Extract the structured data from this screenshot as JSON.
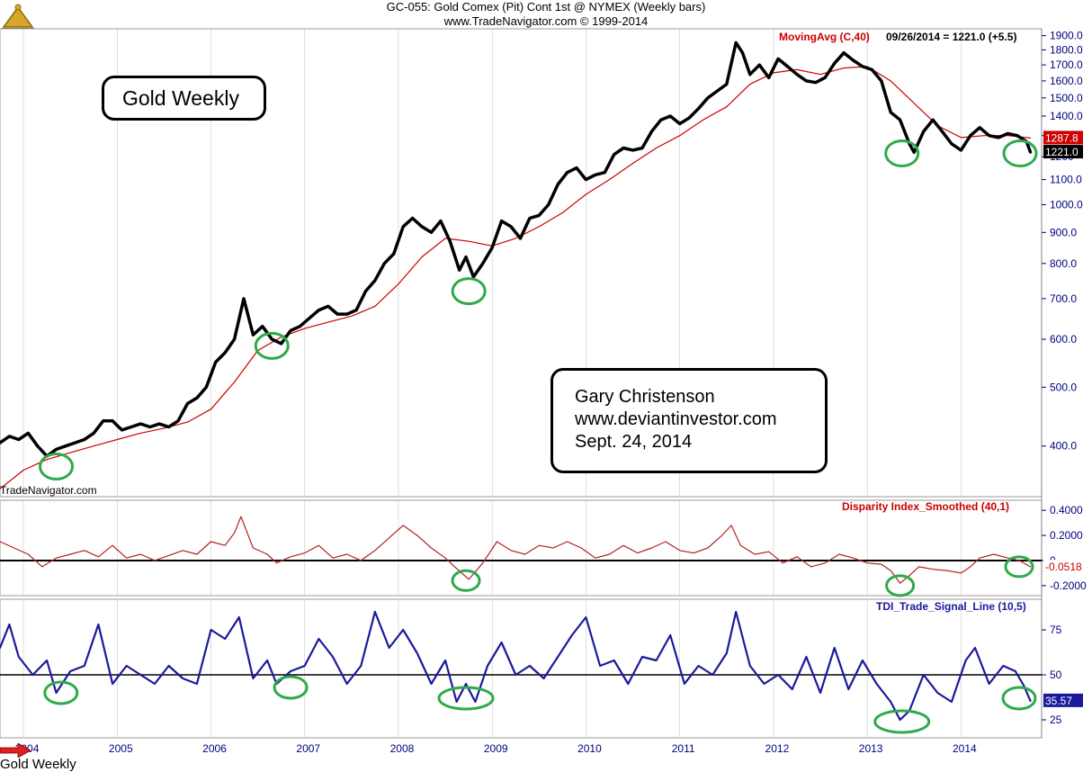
{
  "header": {
    "line1": "GC-055:  Gold Comex (Pit) Cont 1st @ NYMEX  (Weekly bars)",
    "line2": "www.TradeNavigator.com © 1999-2014"
  },
  "notes": {
    "gold_weekly": "Gold Weekly",
    "author": "Gary Christenson",
    "website": "www.deviantinvestor.com",
    "date": "Sept. 24, 2014"
  },
  "credit": "TradeNavigator.com",
  "footer": "Gold Weekly",
  "colors": {
    "price": "#000000",
    "ma": "#cc0000",
    "disparity": "#b22222",
    "tdi": "#1a1a9c",
    "circle": "#2eaa4a",
    "axis_text": "#000080",
    "grid": "#c8c8c8"
  },
  "chart_data": [
    {
      "id": "price",
      "type": "line",
      "title": "MovingAvg (C,40)",
      "info": "09/26/2014 = 1221.0 (+5.5)",
      "scale": "log",
      "ylim": [
        330,
        1950
      ],
      "yticks": [
        400,
        500,
        600,
        700,
        800,
        900,
        1000,
        1100,
        1200,
        1300,
        1400,
        1500,
        1600,
        1700,
        1800,
        1900
      ],
      "ytick_labels": [
        "400.0",
        "500.0",
        "600.0",
        "700.0",
        "800.0",
        "900.0",
        "1000.0",
        "1100.0",
        "1200",
        "1300",
        "1400.0",
        "1500.0",
        "1600.0",
        "1700.0",
        "1800.0",
        "1900.0"
      ],
      "last_labels": [
        "1287.8",
        "1221.0"
      ],
      "series": [
        {
          "name": "Gold Close",
          "x": [
            2003.75,
            2003.85,
            2003.95,
            2004.05,
            2004.15,
            2004.25,
            2004.35,
            2004.45,
            2004.55,
            2004.65,
            2004.75,
            2004.85,
            2004.95,
            2005.05,
            2005.15,
            2005.25,
            2005.35,
            2005.45,
            2005.55,
            2005.65,
            2005.75,
            2005.85,
            2005.95,
            2006.05,
            2006.15,
            2006.25,
            2006.35,
            2006.45,
            2006.55,
            2006.65,
            2006.75,
            2006.85,
            2006.95,
            2007.05,
            2007.15,
            2007.25,
            2007.35,
            2007.45,
            2007.55,
            2007.65,
            2007.75,
            2007.85,
            2007.95,
            2008.05,
            2008.15,
            2008.25,
            2008.35,
            2008.45,
            2008.55,
            2008.65,
            2008.72,
            2008.8,
            2008.9,
            2009.0,
            2009.1,
            2009.2,
            2009.3,
            2009.4,
            2009.5,
            2009.6,
            2009.7,
            2009.8,
            2009.9,
            2010.0,
            2010.1,
            2010.2,
            2010.3,
            2010.4,
            2010.5,
            2010.6,
            2010.7,
            2010.8,
            2010.9,
            2011.0,
            2011.1,
            2011.2,
            2011.3,
            2011.4,
            2011.5,
            2011.6,
            2011.67,
            2011.75,
            2011.85,
            2011.95,
            2012.05,
            2012.15,
            2012.25,
            2012.35,
            2012.45,
            2012.55,
            2012.65,
            2012.75,
            2012.85,
            2012.95,
            2013.05,
            2013.15,
            2013.25,
            2013.35,
            2013.45,
            2013.5,
            2013.6,
            2013.7,
            2013.8,
            2013.9,
            2014.0,
            2014.1,
            2014.2,
            2014.3,
            2014.4,
            2014.5,
            2014.6,
            2014.7,
            2014.74
          ],
          "y": [
            405,
            415,
            410,
            420,
            400,
            385,
            395,
            400,
            405,
            410,
            420,
            440,
            440,
            425,
            430,
            435,
            430,
            435,
            430,
            440,
            470,
            480,
            500,
            550,
            570,
            600,
            700,
            610,
            630,
            600,
            590,
            620,
            630,
            650,
            670,
            680,
            660,
            660,
            670,
            720,
            750,
            800,
            830,
            920,
            950,
            920,
            900,
            940,
            870,
            780,
            820,
            760,
            800,
            850,
            940,
            920,
            880,
            950,
            960,
            1000,
            1080,
            1130,
            1150,
            1100,
            1120,
            1130,
            1210,
            1240,
            1230,
            1240,
            1320,
            1380,
            1400,
            1360,
            1390,
            1440,
            1500,
            1540,
            1580,
            1850,
            1780,
            1640,
            1700,
            1620,
            1740,
            1690,
            1640,
            1600,
            1590,
            1620,
            1710,
            1780,
            1730,
            1690,
            1670,
            1600,
            1420,
            1380,
            1260,
            1220,
            1320,
            1380,
            1320,
            1260,
            1230,
            1300,
            1340,
            1300,
            1290,
            1310,
            1300,
            1270,
            1221
          ]
        },
        {
          "name": "MovingAvg (C,40)",
          "x": [
            2003.75,
            2004.0,
            2004.25,
            2004.5,
            2004.75,
            2005.0,
            2005.25,
            2005.5,
            2005.75,
            2006.0,
            2006.25,
            2006.5,
            2006.75,
            2007.0,
            2007.25,
            2007.5,
            2007.75,
            2008.0,
            2008.25,
            2008.5,
            2008.75,
            2009.0,
            2009.25,
            2009.5,
            2009.75,
            2010.0,
            2010.25,
            2010.5,
            2010.75,
            2011.0,
            2011.25,
            2011.5,
            2011.75,
            2012.0,
            2012.25,
            2012.5,
            2012.75,
            2013.0,
            2013.25,
            2013.5,
            2013.75,
            2014.0,
            2014.25,
            2014.5,
            2014.74
          ],
          "y": [
            340,
            365,
            380,
            390,
            400,
            410,
            420,
            428,
            438,
            460,
            510,
            575,
            605,
            625,
            640,
            655,
            680,
            740,
            820,
            880,
            870,
            855,
            880,
            920,
            970,
            1040,
            1100,
            1170,
            1240,
            1300,
            1380,
            1450,
            1580,
            1650,
            1670,
            1640,
            1680,
            1690,
            1600,
            1470,
            1350,
            1290,
            1300,
            1300,
            1287.8
          ]
        }
      ],
      "markers": [
        [
          2004.35,
          370
        ],
        [
          2006.65,
          585
        ],
        [
          2008.75,
          720
        ],
        [
          2013.37,
          1215
        ],
        [
          2014.63,
          1215
        ]
      ]
    },
    {
      "id": "disparity",
      "type": "line",
      "title": "Disparity Index_Smoothed (40,1)",
      "ylim": [
        -0.28,
        0.48
      ],
      "yticks": [
        0.4,
        0.2,
        0,
        -0.2
      ],
      "ytick_labels": [
        "0.4000",
        "0.2000",
        "0",
        "-0.2000"
      ],
      "last_label": "-0.0518",
      "reference": 0,
      "series": [
        {
          "name": "Disparity Index_Smoothed",
          "x": [
            2003.75,
            2003.9,
            2004.05,
            2004.2,
            2004.35,
            2004.5,
            2004.65,
            2004.8,
            2004.95,
            2005.1,
            2005.25,
            2005.4,
            2005.55,
            2005.7,
            2005.85,
            2006.0,
            2006.15,
            2006.25,
            2006.32,
            2006.45,
            2006.6,
            2006.7,
            2006.85,
            2007.0,
            2007.15,
            2007.3,
            2007.45,
            2007.6,
            2007.75,
            2007.9,
            2008.05,
            2008.2,
            2008.35,
            2008.5,
            2008.6,
            2008.75,
            2008.9,
            2009.05,
            2009.2,
            2009.35,
            2009.5,
            2009.65,
            2009.8,
            2009.95,
            2010.1,
            2010.25,
            2010.4,
            2010.55,
            2010.7,
            2010.85,
            2011.0,
            2011.15,
            2011.3,
            2011.45,
            2011.55,
            2011.65,
            2011.8,
            2011.95,
            2012.1,
            2012.25,
            2012.4,
            2012.55,
            2012.7,
            2012.85,
            2013.0,
            2013.15,
            2013.25,
            2013.35,
            2013.45,
            2013.55,
            2013.7,
            2013.85,
            2014.0,
            2014.1,
            2014.2,
            2014.35,
            2014.5,
            2014.62,
            2014.74
          ],
          "y": [
            0.15,
            0.1,
            0.05,
            -0.05,
            0.02,
            0.05,
            0.08,
            0.03,
            0.12,
            0.02,
            0.05,
            0.0,
            0.04,
            0.08,
            0.05,
            0.15,
            0.12,
            0.22,
            0.35,
            0.1,
            0.05,
            -0.02,
            0.03,
            0.06,
            0.12,
            0.02,
            0.05,
            0.0,
            0.08,
            0.18,
            0.28,
            0.2,
            0.1,
            0.02,
            -0.05,
            -0.15,
            -0.02,
            0.15,
            0.08,
            0.05,
            0.12,
            0.1,
            0.15,
            0.1,
            0.02,
            0.05,
            0.12,
            0.06,
            0.1,
            0.15,
            0.08,
            0.06,
            0.1,
            0.2,
            0.28,
            0.12,
            0.05,
            0.07,
            -0.02,
            0.03,
            -0.05,
            -0.02,
            0.05,
            0.02,
            -0.02,
            -0.03,
            -0.08,
            -0.18,
            -0.12,
            -0.05,
            -0.07,
            -0.08,
            -0.1,
            -0.05,
            0.02,
            0.05,
            0.02,
            0.0,
            -0.05
          ]
        }
      ],
      "markers": [
        [
          2008.72,
          -0.16
        ],
        [
          2013.35,
          -0.2
        ],
        [
          2014.62,
          -0.05
        ]
      ]
    },
    {
      "id": "tdi",
      "type": "line",
      "title": "TDI_Trade_Signal_Line (10,5)",
      "ylim": [
        15,
        92
      ],
      "yticks": [
        75,
        50,
        25
      ],
      "ytick_labels": [
        "75",
        "50",
        "25"
      ],
      "last_label": "35.57",
      "reference": 50,
      "series": [
        {
          "name": "TDI_Trade_Signal_Line",
          "x": [
            2003.75,
            2003.85,
            2003.95,
            2004.1,
            2004.25,
            2004.35,
            2004.5,
            2004.65,
            2004.8,
            2004.95,
            2005.1,
            2005.25,
            2005.4,
            2005.55,
            2005.7,
            2005.85,
            2006.0,
            2006.15,
            2006.3,
            2006.45,
            2006.6,
            2006.7,
            2006.85,
            2007.0,
            2007.15,
            2007.3,
            2007.45,
            2007.6,
            2007.75,
            2007.9,
            2008.05,
            2008.2,
            2008.35,
            2008.5,
            2008.62,
            2008.72,
            2008.82,
            2008.95,
            2009.1,
            2009.25,
            2009.4,
            2009.55,
            2009.7,
            2009.85,
            2010.0,
            2010.15,
            2010.3,
            2010.45,
            2010.6,
            2010.75,
            2010.9,
            2011.05,
            2011.2,
            2011.35,
            2011.5,
            2011.6,
            2011.75,
            2011.9,
            2012.05,
            2012.2,
            2012.35,
            2012.5,
            2012.65,
            2012.8,
            2012.95,
            2013.1,
            2013.25,
            2013.35,
            2013.45,
            2013.6,
            2013.75,
            2013.9,
            2014.05,
            2014.15,
            2014.3,
            2014.45,
            2014.58,
            2014.67,
            2014.74
          ],
          "y": [
            65,
            78,
            60,
            50,
            58,
            40,
            52,
            55,
            78,
            45,
            55,
            50,
            45,
            55,
            48,
            45,
            75,
            70,
            82,
            48,
            58,
            45,
            52,
            55,
            70,
            60,
            45,
            55,
            85,
            65,
            75,
            62,
            45,
            58,
            35,
            45,
            35,
            55,
            68,
            50,
            55,
            48,
            60,
            72,
            82,
            55,
            58,
            45,
            60,
            58,
            72,
            45,
            55,
            50,
            62,
            85,
            55,
            45,
            50,
            42,
            60,
            40,
            65,
            42,
            58,
            45,
            35,
            25,
            30,
            50,
            40,
            35,
            58,
            65,
            45,
            55,
            52,
            44,
            35.57
          ]
        }
      ],
      "markers": [
        [
          2004.4,
          40
        ],
        [
          2006.85,
          43
        ],
        [
          2008.72,
          37
        ],
        [
          2013.37,
          24
        ],
        [
          2014.62,
          37
        ]
      ]
    }
  ],
  "x_axis": {
    "labels": [
      "2004",
      "2005",
      "2006",
      "2007",
      "2008",
      "2009",
      "2010",
      "2011",
      "2012",
      "2013",
      "2014"
    ],
    "years": [
      2004,
      2005,
      2006,
      2007,
      2008,
      2009,
      2010,
      2011,
      2012,
      2013,
      2014
    ]
  }
}
